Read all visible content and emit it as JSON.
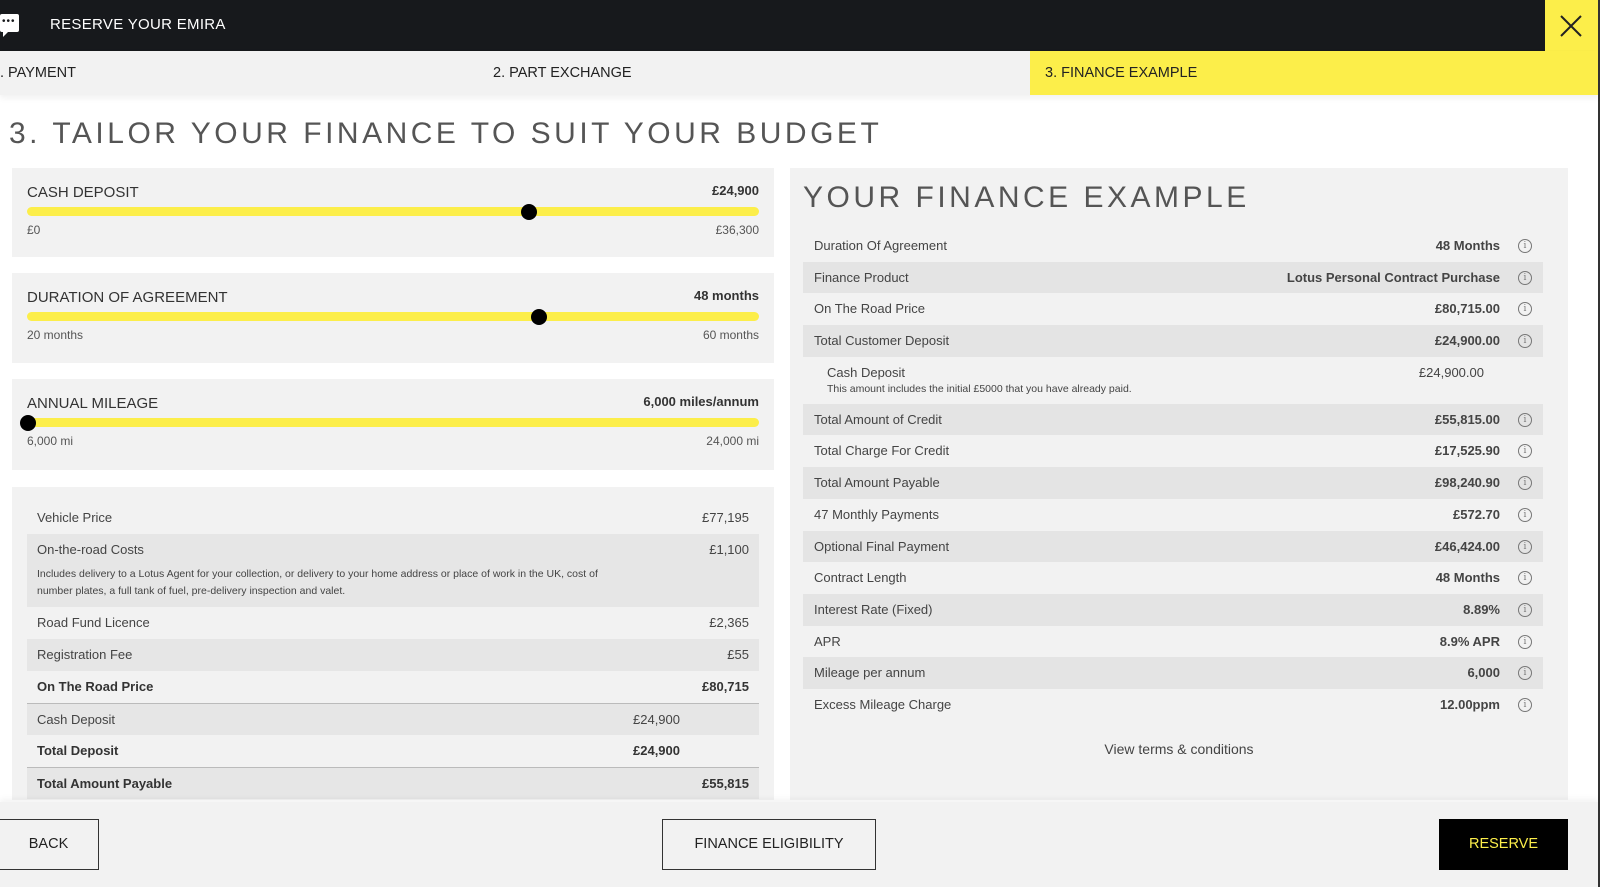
{
  "header": {
    "title": "RESERVE YOUR EMIRA",
    "chat_icon": "chat-bubble-icon",
    "close_icon": "close-icon"
  },
  "colors": {
    "accent": "#fcee4a",
    "dark": "#17191c"
  },
  "tabs": [
    {
      "label": ". PAYMENT"
    },
    {
      "label": "2. PART EXCHANGE"
    },
    {
      "label": "3. FINANCE EXAMPLE",
      "active": true
    }
  ],
  "page_title": "3. TAILOR YOUR FINANCE TO SUIT YOUR BUDGET",
  "sliders": [
    {
      "label": "CASH DEPOSIT",
      "value": "£24,900",
      "min": "£0",
      "max": "£36,300",
      "fraction": 0.686
    },
    {
      "label": "DURATION OF AGREEMENT",
      "value": "48 months",
      "min": "20 months",
      "max": "60 months",
      "fraction": 0.7
    },
    {
      "label": "ANNUAL MILEAGE",
      "value": "6,000 miles/annum",
      "min": "6,000 mi",
      "max": "24,000 mi",
      "fraction": 0
    }
  ],
  "breakdown": {
    "vehicle_price": {
      "label": "Vehicle Price",
      "value": "£77,195"
    },
    "otr_costs": {
      "label": "On-the-road Costs",
      "value": "£1,100",
      "note": "Includes delivery to a Lotus Agent for your collection, or delivery to your home address or place of work in the UK, cost of number plates, a full tank of fuel, pre-delivery inspection and valet."
    },
    "road_fund": {
      "label": "Road Fund Licence",
      "value": "£2,365"
    },
    "registration": {
      "label": "Registration Fee",
      "value": "£55"
    },
    "otr_price": {
      "label": "On The Road Price",
      "value": "£80,715"
    },
    "cash_deposit": {
      "label": "Cash Deposit",
      "value": "£24,900"
    },
    "total_deposit": {
      "label": "Total Deposit",
      "value": "£24,900"
    },
    "total_payable": {
      "label": "Total Amount Payable",
      "value": "£55,815"
    }
  },
  "finance": {
    "title": "YOUR FINANCE EXAMPLE",
    "rows": [
      {
        "label": "Duration Of Agreement",
        "value": "48 Months"
      },
      {
        "label": "Finance Product",
        "value": "Lotus Personal Contract Purchase"
      },
      {
        "label": "On The Road Price",
        "value": "£80,715.00"
      },
      {
        "label": "Total Customer Deposit",
        "value": "£24,900.00"
      },
      {
        "label": "Cash Deposit",
        "value": "£24,900.00",
        "note": "This amount includes the initial £5000 that you have already paid."
      },
      {
        "label": "Total Amount of Credit",
        "value": "£55,815.00"
      },
      {
        "label": "Total Charge For Credit",
        "value": "£17,525.90"
      },
      {
        "label": "Total Amount Payable",
        "value": "£98,240.90"
      },
      {
        "label": "47 Monthly Payments",
        "value": "£572.70"
      },
      {
        "label": "Optional Final Payment",
        "value": "£46,424.00"
      },
      {
        "label": "Contract Length",
        "value": "48 Months"
      },
      {
        "label": "Interest Rate (Fixed)",
        "value": "8.89%"
      },
      {
        "label": "APR",
        "value": "8.9% APR"
      },
      {
        "label": "Mileage per annum",
        "value": "6,000"
      },
      {
        "label": "Excess Mileage Charge",
        "value": "12.00ppm"
      }
    ],
    "info_glyph": "i",
    "terms_link": "View terms & conditions"
  },
  "footer": {
    "back": "BACK",
    "eligibility": "FINANCE ELIGIBILITY",
    "reserve": "RESERVE"
  }
}
